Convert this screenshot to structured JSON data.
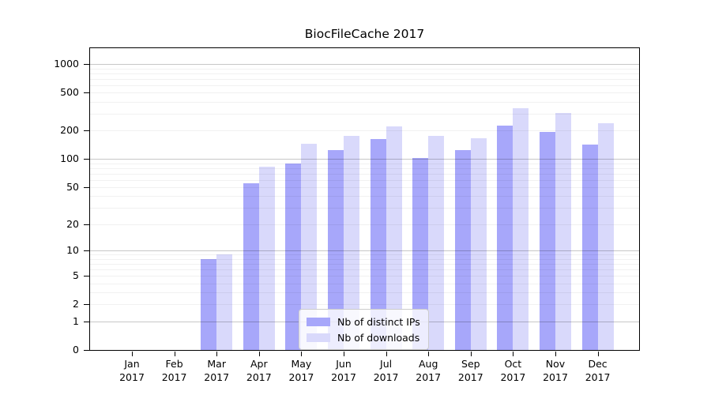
{
  "chart_data": {
    "type": "bar",
    "title": "BiocFileCache 2017",
    "categories": [
      "Jan",
      "Feb",
      "Mar",
      "Apr",
      "May",
      "Jun",
      "Jul",
      "Aug",
      "Sep",
      "Oct",
      "Nov",
      "Dec"
    ],
    "category_year": "2017",
    "series": [
      {
        "name": "Nb of distinct IPs",
        "color": "#a7a7fa",
        "values": [
          0,
          0,
          8,
          55,
          89,
          123,
          163,
          103,
          123,
          225,
          193,
          143
        ]
      },
      {
        "name": "Nb of downloads",
        "color": "#d9d9fb",
        "values": [
          0,
          0,
          9,
          83,
          144,
          176,
          220,
          175,
          165,
          340,
          303,
          240
        ]
      }
    ],
    "xlabel": "",
    "ylabel": "",
    "yscale": "log1p",
    "y_ticks": [
      0,
      1,
      2,
      5,
      10,
      20,
      50,
      100,
      200,
      500,
      1000
    ],
    "ylim": [
      0,
      1465
    ],
    "grid": true,
    "legend_position": "lower-center"
  },
  "style": {
    "grid_major_ticks": [
      1,
      10,
      100,
      1000
    ],
    "axis_color": "#000000",
    "legend_border_color": "#cccccc"
  }
}
